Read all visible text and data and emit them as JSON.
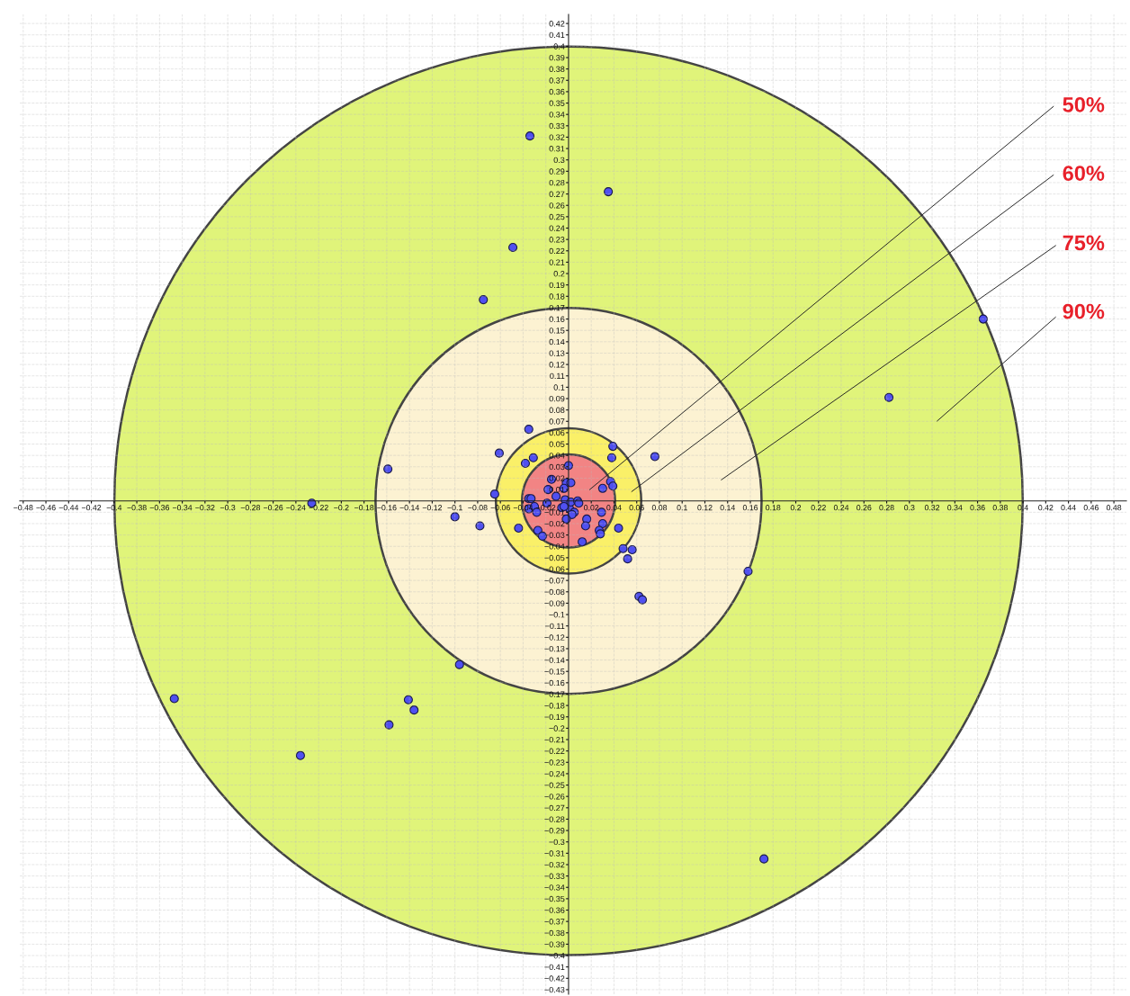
{
  "chart_data": {
    "type": "scatter",
    "xlim": [
      -0.483,
      0.491
    ],
    "ylim": [
      -0.434,
      0.428
    ],
    "xticks": [
      {
        "value": -0.48,
        "label": "−0.48"
      },
      {
        "value": -0.46,
        "label": "−0.46"
      },
      {
        "value": -0.44,
        "label": "−0.44"
      },
      {
        "value": -0.42,
        "label": "−0.42"
      },
      {
        "value": -0.4,
        "label": "−0.4"
      },
      {
        "value": -0.38,
        "label": "−0.38"
      },
      {
        "value": -0.36,
        "label": "−0.36"
      },
      {
        "value": -0.34,
        "label": "−0.34"
      },
      {
        "value": -0.32,
        "label": "−0.32"
      },
      {
        "value": -0.3,
        "label": "−0.3"
      },
      {
        "value": -0.28,
        "label": "−0.28"
      },
      {
        "value": -0.26,
        "label": "−0.26"
      },
      {
        "value": -0.24,
        "label": "−0.24"
      },
      {
        "value": -0.22,
        "label": "−0.22"
      },
      {
        "value": -0.2,
        "label": "−0.2"
      },
      {
        "value": -0.18,
        "label": "−0.18"
      },
      {
        "value": -0.16,
        "label": "−0.16"
      },
      {
        "value": -0.14,
        "label": "−0.14"
      },
      {
        "value": -0.12,
        "label": "−0.12"
      },
      {
        "value": -0.1,
        "label": "−0.1"
      },
      {
        "value": -0.08,
        "label": "−0.08"
      },
      {
        "value": -0.06,
        "label": "−0.06"
      },
      {
        "value": -0.04,
        "label": "−0.04"
      },
      {
        "value": -0.02,
        "label": "−0.02"
      },
      0.02,
      0.04,
      0.06,
      0.08,
      0.1,
      0.12,
      0.14,
      0.16,
      0.18,
      0.2,
      0.22,
      0.24,
      0.26,
      0.28,
      0.3,
      0.32,
      0.34,
      0.36,
      0.38,
      0.4,
      0.42,
      0.44,
      0.46,
      0.48
    ],
    "yticks": [
      {
        "value": -0.43,
        "label": "−0.43"
      },
      {
        "value": -0.42,
        "label": "−0.42"
      },
      {
        "value": -0.41,
        "label": "−0.41"
      },
      {
        "value": -0.4,
        "label": "−0.4"
      },
      {
        "value": -0.39,
        "label": "−0.39"
      },
      {
        "value": -0.38,
        "label": "−0.38"
      },
      {
        "value": -0.37,
        "label": "−0.37"
      },
      {
        "value": -0.36,
        "label": "−0.36"
      },
      {
        "value": -0.35,
        "label": "−0.35"
      },
      {
        "value": -0.34,
        "label": "−0.34"
      },
      {
        "value": -0.33,
        "label": "−0.33"
      },
      {
        "value": -0.32,
        "label": "−0.32"
      },
      {
        "value": -0.31,
        "label": "−0.31"
      },
      {
        "value": -0.3,
        "label": "−0.3"
      },
      {
        "value": -0.29,
        "label": "−0.29"
      },
      {
        "value": -0.28,
        "label": "−0.28"
      },
      {
        "value": -0.27,
        "label": "−0.27"
      },
      {
        "value": -0.26,
        "label": "−0.26"
      },
      {
        "value": -0.25,
        "label": "−0.25"
      },
      {
        "value": -0.24,
        "label": "−0.24"
      },
      {
        "value": -0.23,
        "label": "−0.23"
      },
      {
        "value": -0.22,
        "label": "−0.22"
      },
      {
        "value": -0.21,
        "label": "−0.21"
      },
      {
        "value": -0.2,
        "label": "−0.2"
      },
      {
        "value": -0.19,
        "label": "−0.19"
      },
      {
        "value": -0.18,
        "label": "−0.18"
      },
      {
        "value": -0.17,
        "label": "−0.17"
      },
      {
        "value": -0.16,
        "label": "−0.16"
      },
      {
        "value": -0.15,
        "label": "−0.15"
      },
      {
        "value": -0.14,
        "label": "−0.14"
      },
      {
        "value": -0.13,
        "label": "−0.13"
      },
      {
        "value": -0.12,
        "label": "−0.12"
      },
      {
        "value": -0.11,
        "label": "−0.11"
      },
      {
        "value": -0.1,
        "label": "−0.1"
      },
      {
        "value": -0.09,
        "label": "−0.09"
      },
      {
        "value": -0.08,
        "label": "−0.08"
      },
      {
        "value": -0.07,
        "label": "−0.07"
      },
      {
        "value": -0.06,
        "label": "−0.06"
      },
      {
        "value": -0.05,
        "label": "−0.05"
      },
      {
        "value": -0.04,
        "label": "−0.04"
      },
      {
        "value": -0.03,
        "label": "−0.03"
      },
      {
        "value": -0.02,
        "label": "−0.02"
      },
      {
        "value": -0.01,
        "label": "−0.01"
      },
      0.01,
      0.02,
      0.03,
      0.04,
      0.05,
      0.06,
      0.07,
      0.08,
      0.09,
      0.1,
      0.11,
      0.12,
      0.13,
      0.14,
      0.15,
      0.16,
      0.17,
      0.18,
      0.19,
      0.2,
      0.21,
      0.22,
      0.23,
      0.24,
      0.25,
      0.26,
      0.27,
      0.28,
      0.29,
      0.3,
      0.31,
      0.32,
      0.33,
      0.34,
      0.35,
      0.36,
      0.37,
      0.38,
      0.39,
      0.4,
      0.41,
      0.42
    ],
    "grid": true,
    "marker": "circle",
    "series": [
      {
        "type": "bubble",
        "colors": [
          "#e0f47a",
          "#fcf2d2",
          "#faf068",
          "#f28484"
        ],
        "x": [
          0,
          0,
          0,
          0
        ],
        "values": [
          0,
          0,
          0,
          0
        ],
        "sizes": [
          1,
          0.1806,
          0.0256,
          0.0105
        ]
      },
      {
        "color": "#5050f0",
        "x": [
          -0.034,
          0.035,
          -0.049,
          -0.075,
          0.365,
          0.282,
          -0.159,
          -0.226,
          -0.347,
          -0.141,
          -0.136,
          -0.158,
          -0.236,
          -0.096,
          0.172,
          0.158,
          0.062,
          0.065,
          0.048,
          0.056,
          0.052,
          0.076,
          0.039,
          0.038,
          -0.035,
          -0.061,
          -0.038,
          -0.031,
          -0.065,
          -0.1,
          -0.078,
          0.0,
          -0.015,
          -0.018,
          -0.002,
          0.002,
          -0.004,
          -0.011,
          0.037,
          0.039,
          0.03,
          -0.003,
          -0.035,
          -0.033,
          -0.035,
          -0.03,
          -0.028,
          -0.019,
          -0.006,
          0.001,
          0.002,
          0.008,
          0.009,
          -0.004,
          0.005,
          0.003,
          -0.002,
          0.029,
          0.016,
          0.015,
          0.03,
          0.027,
          0.028,
          0.044,
          -0.044,
          -0.027,
          -0.023,
          0.012
        ],
        "values": [
          0.321,
          0.272,
          0.223,
          0.177,
          0.16,
          0.091,
          0.028,
          -0.002,
          -0.174,
          -0.175,
          -0.184,
          -0.197,
          -0.224,
          -0.144,
          -0.315,
          -0.062,
          -0.084,
          -0.087,
          -0.042,
          -0.043,
          -0.051,
          0.039,
          0.048,
          0.038,
          0.063,
          0.042,
          0.033,
          0.038,
          0.006,
          -0.014,
          -0.022,
          0.031,
          0.019,
          0.01,
          0.016,
          0.016,
          0.011,
          0.004,
          0.017,
          0.013,
          0.011,
          0.001,
          0.002,
          0.002,
          -0.007,
          -0.005,
          -0.01,
          -0.002,
          -0.006,
          -0.007,
          -0.001,
          0.0,
          -0.002,
          -0.005,
          -0.01,
          -0.012,
          -0.016,
          -0.01,
          -0.016,
          -0.022,
          -0.02,
          -0.026,
          -0.029,
          -0.024,
          -0.024,
          -0.026,
          -0.031,
          -0.036
        ]
      }
    ],
    "annotations": [
      "50%",
      "60%",
      "75%",
      "90%"
    ]
  }
}
